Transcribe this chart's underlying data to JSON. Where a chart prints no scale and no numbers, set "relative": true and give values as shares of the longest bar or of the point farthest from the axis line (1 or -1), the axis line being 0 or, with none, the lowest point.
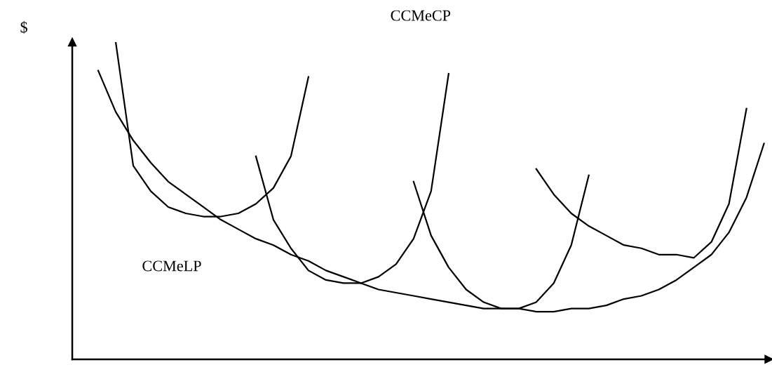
{
  "chart_data": {
    "type": "line",
    "title": "CCMeCP",
    "ylabel": "$",
    "annotations": [
      "CCMeLP"
    ],
    "relative": true,
    "grid": false,
    "line_style": "solid",
    "categories": [
      null,
      null,
      null,
      null,
      null,
      null,
      null,
      null,
      null,
      null,
      null,
      null,
      null,
      null,
      null,
      null,
      null,
      null,
      null,
      null,
      null,
      null,
      null,
      null,
      null,
      null,
      null,
      null,
      null,
      null,
      null,
      null,
      null,
      null,
      null,
      null,
      null,
      null,
      null
    ],
    "series": [
      {
        "color": "#000000",
        "values": [
          null,
          1.0,
          0.61,
          0.53,
          0.48,
          0.46,
          0.45,
          0.45,
          0.46,
          0.49,
          0.54,
          0.64,
          0.89,
          null,
          null,
          null,
          null,
          null,
          null,
          null,
          null,
          null,
          null,
          null,
          null,
          null,
          null,
          null,
          null,
          null,
          null,
          null,
          null,
          null,
          null,
          null,
          null,
          null,
          null
        ]
      },
      {
        "color": "#000000",
        "values": [
          null,
          null,
          null,
          null,
          null,
          null,
          null,
          null,
          null,
          0.64,
          0.44,
          0.35,
          0.28,
          0.25,
          0.24,
          0.24,
          0.26,
          0.3,
          0.38,
          0.53,
          0.9,
          null,
          null,
          null,
          null,
          null,
          null,
          null,
          null,
          null,
          null,
          null,
          null,
          null,
          null,
          null,
          null,
          null,
          null
        ]
      },
      {
        "color": "#000000",
        "values": [
          null,
          null,
          null,
          null,
          null,
          null,
          null,
          null,
          null,
          null,
          null,
          null,
          null,
          null,
          null,
          null,
          null,
          null,
          0.56,
          0.39,
          0.29,
          0.22,
          0.18,
          0.16,
          0.16,
          0.18,
          0.24,
          0.36,
          0.58,
          null,
          null,
          null,
          null,
          null,
          null,
          null,
          null,
          null,
          null
        ]
      },
      {
        "color": "#000000",
        "values": [
          null,
          null,
          null,
          null,
          null,
          null,
          null,
          null,
          null,
          null,
          null,
          null,
          null,
          null,
          null,
          null,
          null,
          null,
          null,
          null,
          null,
          null,
          null,
          null,
          null,
          0.6,
          0.52,
          0.46,
          0.42,
          0.39,
          0.36,
          0.35,
          0.33,
          0.33,
          0.32,
          0.37,
          0.49,
          0.79,
          null
        ]
      },
      {
        "color": "#000000",
        "values": [
          0.91,
          0.78,
          0.69,
          0.62,
          0.56,
          0.52,
          0.48,
          0.44,
          0.41,
          0.38,
          0.36,
          0.33,
          0.31,
          0.28,
          0.26,
          0.24,
          0.22,
          0.21,
          0.2,
          0.19,
          0.18,
          0.17,
          0.16,
          0.16,
          0.16,
          0.15,
          0.15,
          0.16,
          0.16,
          0.17,
          0.19,
          0.2,
          0.22,
          0.25,
          0.29,
          0.33,
          0.4,
          0.51,
          0.68
        ]
      }
    ]
  }
}
